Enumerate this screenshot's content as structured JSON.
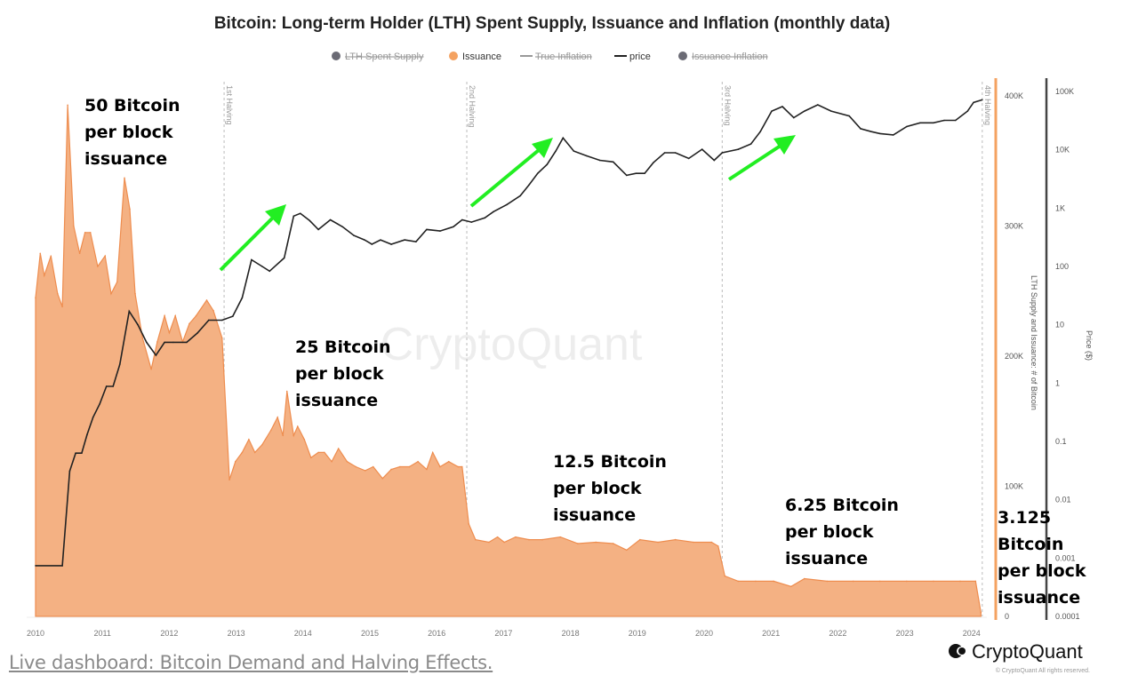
{
  "chart_data": {
    "type": "area",
    "title": "Bitcoin: Long-term Holder (LTH) Spent Supply, Issuance and Inflation (monthly data)",
    "legend": {
      "placement": "top",
      "items": [
        {
          "label": "LTH Spent Supply",
          "marker": "dot",
          "color": "#6b6b75",
          "disabled": true
        },
        {
          "label": "Issuance",
          "marker": "dot",
          "color": "#f4a261",
          "disabled": false
        },
        {
          "label": "True Inflation",
          "marker": "line",
          "color": "#999999",
          "disabled": true
        },
        {
          "label": "price",
          "marker": "line",
          "color": "#222222",
          "disabled": false
        },
        {
          "label": "Issuance Inflation",
          "marker": "dot",
          "color": "#6b6b75",
          "disabled": true
        }
      ]
    },
    "x_ticks": [
      "2010",
      "2011",
      "2012",
      "2013",
      "2014",
      "2015",
      "2016",
      "2017",
      "2018",
      "2019",
      "2020",
      "2021",
      "2022",
      "2023",
      "2024"
    ],
    "xlim": [
      2010,
      2024.2
    ],
    "y_left": {
      "label": "LTH Supply and Issuance: # of Bitcoin",
      "ticks": [
        "0",
        "100K",
        "200K",
        "300K",
        "400K"
      ],
      "ylim": [
        0,
        400000
      ],
      "color": "#f4a261"
    },
    "y_right": {
      "label": "Price ($)",
      "scale": "log",
      "ticks": [
        "0.0001",
        "0.001",
        "0.01",
        "0.1",
        "1",
        "10",
        "100",
        "1K",
        "10K",
        "100K"
      ],
      "ylim": [
        0.0001,
        100000
      ],
      "color": "#444444"
    },
    "halvings": [
      {
        "label": "1st Halving",
        "x": 2012.82
      },
      {
        "label": "2nd Halving",
        "x": 2016.45
      },
      {
        "label": "3rd Halving",
        "x": 2020.27
      },
      {
        "label": "4th Halving",
        "x": 2024.16
      }
    ],
    "series": [
      {
        "name": "Issuance",
        "color": "#f4b183",
        "axis": "left",
        "x": [
          2010.0,
          2010.07,
          2010.13,
          2010.23,
          2010.33,
          2010.4,
          2010.48,
          2010.57,
          2010.66,
          2010.74,
          2010.82,
          2010.93,
          2011.04,
          2011.13,
          2011.22,
          2011.33,
          2011.41,
          2011.49,
          2011.6,
          2011.73,
          2011.82,
          2011.93,
          2012.0,
          2012.09,
          2012.2,
          2012.3,
          2012.4,
          2012.56,
          2012.66,
          2012.79,
          2012.9,
          2012.99,
          2013.09,
          2013.19,
          2013.28,
          2013.39,
          2013.52,
          2013.62,
          2013.7,
          2013.76,
          2013.86,
          2013.92,
          2014.02,
          2014.12,
          2014.23,
          2014.32,
          2014.43,
          2014.53,
          2014.66,
          2014.79,
          2014.93,
          2015.05,
          2015.19,
          2015.32,
          2015.45,
          2015.59,
          2015.72,
          2015.85,
          2015.94,
          2016.05,
          2016.18,
          2016.32,
          2016.38,
          2016.48,
          2016.58,
          2016.78,
          2016.91,
          2017.01,
          2017.18,
          2017.38,
          2017.58,
          2017.85,
          2018.11,
          2018.38,
          2018.64,
          2018.84,
          2019.04,
          2019.31,
          2019.57,
          2019.84,
          2020.11,
          2020.21,
          2020.31,
          2020.51,
          2020.77,
          2021.04,
          2021.3,
          2021.5,
          2021.84,
          2022.23,
          2022.63,
          2023.03,
          2023.43,
          2023.83,
          2024.06,
          2024.14
        ],
        "values": [
          245000,
          279000,
          262000,
          277000,
          248000,
          238000,
          393000,
          300000,
          279000,
          295000,
          295000,
          269000,
          277000,
          248000,
          257000,
          337000,
          313000,
          248000,
          214000,
          190000,
          211000,
          231000,
          218000,
          231000,
          211000,
          225000,
          231000,
          243000,
          235000,
          214000,
          105000,
          119000,
          126000,
          136000,
          126000,
          132000,
          143000,
          153000,
          139000,
          173000,
          139000,
          146000,
          136000,
          122000,
          126000,
          126000,
          119000,
          129000,
          119000,
          115000,
          112000,
          115000,
          106000,
          113000,
          115000,
          115000,
          119000,
          113000,
          126000,
          115000,
          119000,
          115000,
          115000,
          71000,
          59000,
          57000,
          61000,
          57000,
          61000,
          59000,
          59000,
          61000,
          56000,
          57000,
          56000,
          51000,
          59000,
          57000,
          59000,
          57000,
          57000,
          54000,
          31000,
          27000,
          27000,
          27000,
          23000,
          29000,
          27000,
          27000,
          27000,
          27000,
          27000,
          27000,
          27000,
          3000
        ]
      },
      {
        "name": "price",
        "color": "#222222",
        "axis": "right",
        "x": [
          2010.0,
          2010.4,
          2010.51,
          2010.6,
          2010.69,
          2010.77,
          2010.86,
          2010.96,
          2011.06,
          2011.16,
          2011.26,
          2011.4,
          2011.53,
          2011.66,
          2011.8,
          2011.93,
          2012.06,
          2012.26,
          2012.42,
          2012.59,
          2012.79,
          2012.95,
          2013.09,
          2013.23,
          2013.39,
          2013.5,
          2013.72,
          2013.86,
          2013.96,
          2014.1,
          2014.23,
          2014.41,
          2014.59,
          2014.76,
          2014.92,
          2015.03,
          2015.16,
          2015.32,
          2015.52,
          2015.69,
          2015.85,
          2016.05,
          2016.25,
          2016.38,
          2016.52,
          2016.72,
          2016.85,
          2017.05,
          2017.25,
          2017.38,
          2017.51,
          2017.65,
          2017.78,
          2017.89,
          2018.05,
          2018.24,
          2018.44,
          2018.64,
          2018.84,
          2018.98,
          2019.11,
          2019.24,
          2019.41,
          2019.57,
          2019.77,
          2019.97,
          2020.15,
          2020.27,
          2020.51,
          2020.7,
          2020.84,
          2021.01,
          2021.17,
          2021.34,
          2021.5,
          2021.7,
          2021.9,
          2022.17,
          2022.34,
          2022.5,
          2022.63,
          2022.83,
          2023.03,
          2023.23,
          2023.43,
          2023.59,
          2023.76,
          2023.94,
          2024.03,
          2024.16
        ],
        "values": [
          0.00074,
          0.00074,
          0.031,
          0.063,
          0.063,
          0.13,
          0.26,
          0.44,
          0.88,
          0.88,
          2.1,
          17,
          10,
          5,
          3,
          5,
          5,
          5,
          7.2,
          12,
          12,
          14,
          29,
          130,
          100,
          83,
          140,
          730,
          810,
          610,
          430,
          630,
          480,
          340,
          285,
          240,
          285,
          240,
          285,
          265,
          430,
          405,
          480,
          630,
          575,
          680,
          870,
          1150,
          1630,
          2500,
          3950,
          5600,
          9500,
          16000,
          9500,
          7900,
          6600,
          6200,
          3650,
          3950,
          3950,
          6000,
          8900,
          8900,
          7100,
          10200,
          6600,
          8900,
          10200,
          12600,
          20500,
          46000,
          55000,
          35500,
          46000,
          59000,
          46000,
          38000,
          23000,
          20500,
          19000,
          18000,
          25000,
          29000,
          29000,
          32000,
          32000,
          46000,
          65000,
          72000
        ]
      }
    ],
    "annotations": [
      {
        "text": "50 Bitcoin\nper block\nissuance"
      },
      {
        "text": "25 Bitcoin\nper block\nissuance"
      },
      {
        "text": "12.5 Bitcoin\nper block\nissuance"
      },
      {
        "text": "6.25 Bitcoin\nper block\nissuance"
      },
      {
        "text": "3.125 Bitcoin\nper block\nissuance"
      }
    ],
    "arrow_color": "#22ee22",
    "watermark": "CryptoQuant"
  },
  "footer": {
    "brand": "CryptoQuant",
    "copyright": "© CryptoQuant All rights reserved.",
    "link_text": "Live dashboard: Bitcoin Demand and Halving Effects."
  }
}
